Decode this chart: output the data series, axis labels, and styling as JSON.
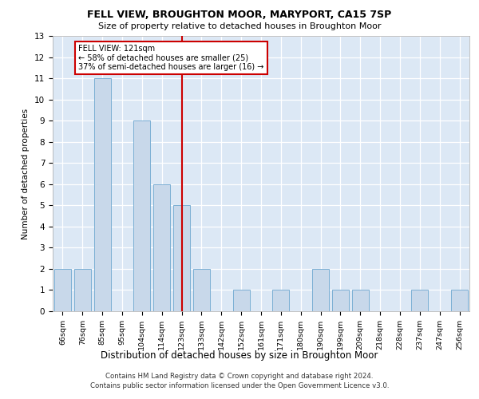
{
  "title": "FELL VIEW, BROUGHTON MOOR, MARYPORT, CA15 7SP",
  "subtitle": "Size of property relative to detached houses in Broughton Moor",
  "xlabel": "Distribution of detached houses by size in Broughton Moor",
  "ylabel": "Number of detached properties",
  "categories": [
    "66sqm",
    "76sqm",
    "85sqm",
    "95sqm",
    "104sqm",
    "114sqm",
    "123sqm",
    "133sqm",
    "142sqm",
    "152sqm",
    "161sqm",
    "171sqm",
    "180sqm",
    "190sqm",
    "199sqm",
    "209sqm",
    "218sqm",
    "228sqm",
    "237sqm",
    "247sqm",
    "256sqm"
  ],
  "values": [
    2,
    2,
    11,
    0,
    9,
    6,
    5,
    2,
    0,
    1,
    0,
    1,
    0,
    2,
    1,
    1,
    0,
    0,
    1,
    0,
    1
  ],
  "bar_color": "#c8d8ea",
  "bar_edge_color": "#7bafd4",
  "reference_line_index": 6,
  "reference_line_color": "#cc0000",
  "annotation_text": "FELL VIEW: 121sqm\n← 58% of detached houses are smaller (25)\n37% of semi-detached houses are larger (16) →",
  "annotation_box_color": "#cc0000",
  "ylim": [
    0,
    13
  ],
  "yticks": [
    0,
    1,
    2,
    3,
    4,
    5,
    6,
    7,
    8,
    9,
    10,
    11,
    12,
    13
  ],
  "footnote1": "Contains HM Land Registry data © Crown copyright and database right 2024.",
  "footnote2": "Contains public sector information licensed under the Open Government Licence v3.0.",
  "fig_bg_color": "#ffffff",
  "plot_bg_color": "#dce8f5"
}
